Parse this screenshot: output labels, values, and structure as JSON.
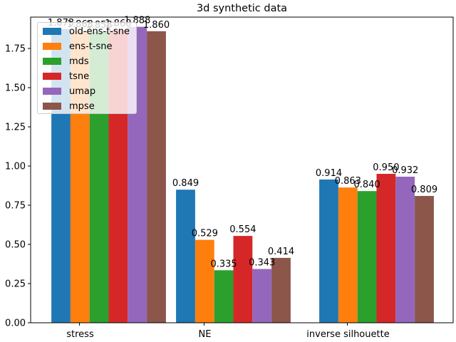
{
  "chart_data": {
    "type": "bar",
    "title": "3d synthetic data",
    "xlabel": "",
    "ylabel": "",
    "categories": [
      "stress",
      "NE",
      "inverse silhouette"
    ],
    "ylim": [
      0,
      1.95
    ],
    "yticks": [
      "0.00",
      "0.25",
      "0.50",
      "0.75",
      "1.00",
      "1.25",
      "1.50",
      "1.75"
    ],
    "legend_position": "top-left",
    "grid": false,
    "series": [
      {
        "name": "old-ens-t-sne",
        "color": "#1f77b4",
        "values": [
          1.873,
          0.849,
          0.914
        ],
        "labels": [
          "1.873",
          "0.849",
          "0.914"
        ]
      },
      {
        "name": "ens-t-sne",
        "color": "#ff7f0e",
        "values": [
          1.863,
          0.529,
          0.863
        ],
        "labels": [
          "1.863",
          "0.529",
          "0.863"
        ]
      },
      {
        "name": "mds",
        "color": "#2ca02c",
        "values": [
          1.858,
          0.335,
          0.84
        ],
        "labels": [
          "1.858",
          "0.335",
          "0.840"
        ]
      },
      {
        "name": "tsne",
        "color": "#d62728",
        "values": [
          1.868,
          0.554,
          0.95
        ],
        "labels": [
          "1.868",
          "0.554",
          "0.950"
        ]
      },
      {
        "name": "umap",
        "color": "#9467bd",
        "values": [
          1.888,
          0.343,
          0.932
        ],
        "labels": [
          "1.888",
          "0.343",
          "0.932"
        ]
      },
      {
        "name": "mpse",
        "color": "#8c564b",
        "values": [
          1.86,
          0.414,
          0.809
        ],
        "labels": [
          "1.860",
          "0.414",
          "0.809"
        ]
      }
    ]
  }
}
